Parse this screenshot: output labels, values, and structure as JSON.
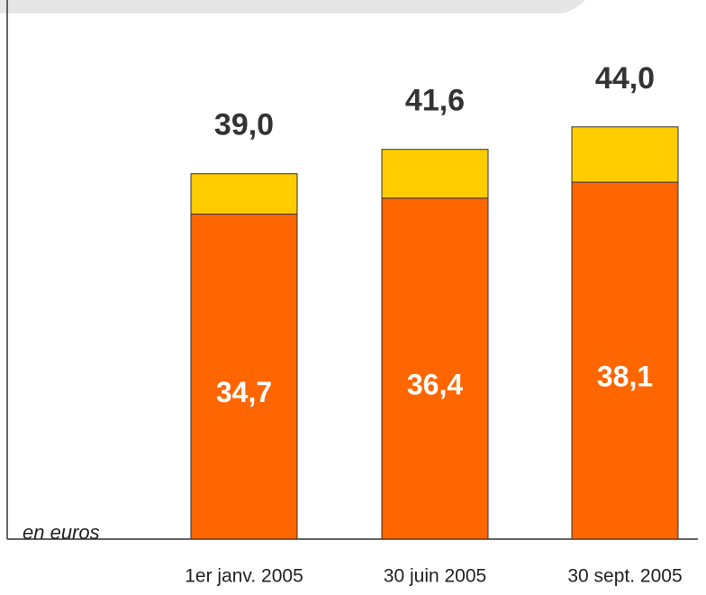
{
  "chart_data": {
    "type": "stacked_bar",
    "categories": [
      "1er janv. 2005",
      "30 juin 2005",
      "30 sept. 2005"
    ],
    "series": [
      {
        "color": "#ff6600",
        "values": [
          34.7,
          36.4,
          38.1
        ],
        "value_labels": [
          "34,7",
          "36,4",
          "38,1"
        ]
      },
      {
        "color": "#ffcc00",
        "values": [
          4.3,
          5.2,
          5.9
        ]
      }
    ],
    "totals": [
      39.0,
      41.6,
      44.0
    ],
    "total_labels": [
      "39,0",
      "41,6",
      "44,0"
    ],
    "ylim": [
      0,
      46
    ],
    "y_label": "en euros"
  }
}
